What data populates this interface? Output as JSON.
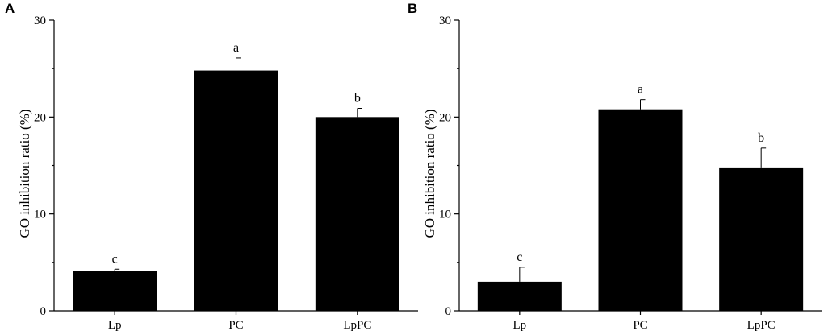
{
  "chart_data": [
    {
      "panel": "A",
      "type": "bar",
      "ylabel": "GO inhibition ratio (%)",
      "xlabel": "",
      "ylim": [
        0,
        30
      ],
      "yticks": [
        0,
        10,
        20,
        30
      ],
      "categories": [
        "Lp",
        "PC",
        "LpPC"
      ],
      "values": [
        4.1,
        24.8,
        20.0
      ],
      "errors": [
        0.2,
        1.3,
        0.9
      ],
      "significance": [
        "c",
        "a",
        "b"
      ],
      "bar_color": "#000000"
    },
    {
      "panel": "B",
      "type": "bar",
      "ylabel": "GO inhibition ratio (%)",
      "xlabel": "",
      "ylim": [
        0,
        30
      ],
      "yticks": [
        0,
        10,
        20,
        30
      ],
      "categories": [
        "Lp",
        "PC",
        "LpPC"
      ],
      "values": [
        3.0,
        20.8,
        14.8
      ],
      "errors": [
        1.5,
        1.0,
        2.0
      ],
      "significance": [
        "c",
        "a",
        "b"
      ],
      "bar_color": "#000000"
    }
  ]
}
